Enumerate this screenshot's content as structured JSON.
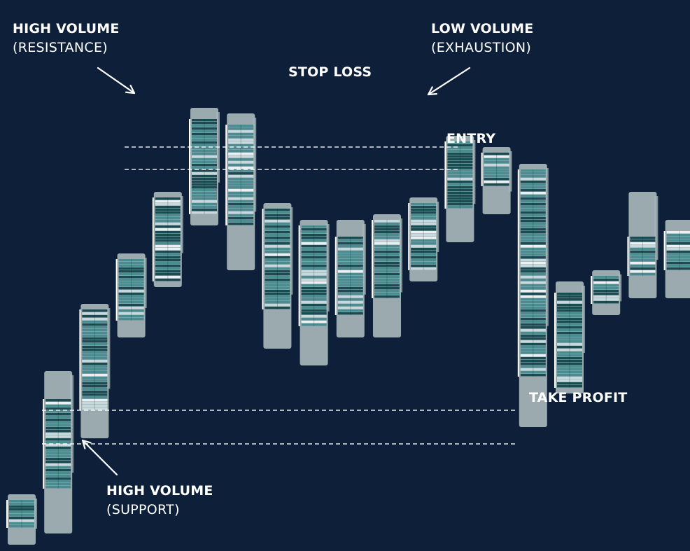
{
  "chart_data": {
    "type": "footprint",
    "title": "",
    "xlabel": "",
    "ylabel": "",
    "colors": {
      "background": "#0e2039",
      "cell_dark": "#1c4a52",
      "cell_mid": "#4e8a91",
      "cell_light": "#c6dadd",
      "candle_body": "#a7b6ba",
      "line": "#ffffff"
    },
    "candles": [
      {
        "open": 3,
        "close": 8,
        "high": 9,
        "low": 0
      },
      {
        "open": 10,
        "close": 26,
        "high": 31,
        "low": 2
      },
      {
        "open": 24,
        "close": 42,
        "high": 43,
        "low": 19
      },
      {
        "open": 40,
        "close": 51,
        "high": 52,
        "low": 37
      },
      {
        "open": 47,
        "close": 62,
        "high": 63,
        "low": 46
      },
      {
        "open": 59,
        "close": 76,
        "high": 78,
        "low": 57
      },
      {
        "open": 75,
        "close": 57,
        "high": 77,
        "low": 49
      },
      {
        "open": 60,
        "close": 42,
        "high": 61,
        "low": 35
      },
      {
        "open": 57,
        "close": 39,
        "high": 58,
        "low": 32
      },
      {
        "open": 55,
        "close": 41,
        "high": 58,
        "low": 37
      },
      {
        "open": 44,
        "close": 58,
        "high": 59,
        "low": 37
      },
      {
        "open": 49,
        "close": 61,
        "high": 62,
        "low": 47
      },
      {
        "open": 60,
        "close": 72,
        "high": 73,
        "low": 54
      },
      {
        "open": 70,
        "close": 64,
        "high": 71,
        "low": 59
      },
      {
        "open": 67,
        "close": 30,
        "high": 68,
        "low": 21
      },
      {
        "open": 45,
        "close": 28,
        "high": 47,
        "low": 27
      },
      {
        "open": 48,
        "close": 43,
        "high": 49,
        "low": 41
      },
      {
        "open": 55,
        "close": 48,
        "high": 63,
        "low": 44
      },
      {
        "open": 56,
        "close": 49,
        "high": 58,
        "low": 44
      },
      {
        "open": 52,
        "close": 79,
        "high": 81,
        "low": 51
      },
      {
        "open": 83,
        "close": 85,
        "high": 87,
        "low": 83
      }
    ],
    "levels": [
      {
        "name": "stop-loss-upper",
        "y": 71
      },
      {
        "name": "stop-loss-lower",
        "y": 67
      },
      {
        "name": "take-profit-upper",
        "y": 24
      },
      {
        "name": "take-profit-lower",
        "y": 18
      }
    ],
    "annotations": [
      {
        "id": "high-volume-resistance",
        "title": "HIGH VOLUME",
        "subtitle": "(RESISTANCE)"
      },
      {
        "id": "low-volume-exhaustion",
        "title": "LOW VOLUME",
        "subtitle": "(EXHAUSTION)"
      },
      {
        "id": "stop-loss",
        "title": "STOP LOSS"
      },
      {
        "id": "entry",
        "title": "ENTRY"
      },
      {
        "id": "take-profit",
        "title": "TAKE PROFIT"
      },
      {
        "id": "high-volume-support",
        "title": "HIGH VOLUME",
        "subtitle": "(SUPPORT)"
      }
    ]
  }
}
